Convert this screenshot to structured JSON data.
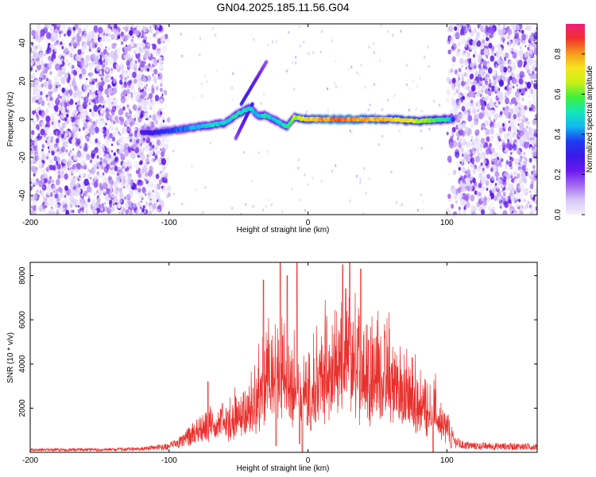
{
  "title": "GN04.2025.185.11.56.G04",
  "colors": {
    "snr_line": "#e8302c",
    "frame": "#000000",
    "noise": "#7a2cf0",
    "colormap": [
      "#f2f0fb",
      "#d6c6f5",
      "#a36af0",
      "#6a18ef",
      "#3a1ae8",
      "#1e3cf0",
      "#11b8f0",
      "#12e8b8",
      "#3ef03a",
      "#c8f018",
      "#f5e51c",
      "#f59a1e",
      "#f0302c",
      "#ee1f7c"
    ]
  },
  "chart_data": [
    {
      "type": "heatmap",
      "xlabel": "Height of straight line (km)",
      "ylabel": "Frequency (Hz)",
      "xlim": [
        -200,
        165
      ],
      "ylim": [
        -50,
        50
      ],
      "xticks": [
        -200,
        -100,
        0,
        100
      ],
      "yticks": [
        -40,
        -20,
        0,
        20,
        40
      ],
      "colorbar": {
        "label": "Normalized spectral amplitude",
        "range": [
          0,
          0.95
        ],
        "ticks": [
          0.0,
          0.2,
          0.4,
          0.6,
          0.8
        ]
      },
      "noise_regions_x": [
        [
          -200,
          -100
        ],
        [
          100,
          165
        ]
      ],
      "signal_trace": {
        "x": [
          -120,
          -110,
          -100,
          -90,
          -80,
          -70,
          -60,
          -50,
          -42,
          -36,
          -30,
          -25,
          -20,
          -15,
          -10,
          0,
          20,
          40,
          60,
          80,
          100,
          105
        ],
        "freq": [
          -7,
          -7,
          -6,
          -5,
          -4,
          -3,
          -2,
          3,
          6,
          2,
          2,
          0,
          -2,
          -4,
          1,
          0,
          0,
          0,
          0,
          -1,
          0,
          0
        ],
        "amplitude": [
          0.3,
          0.35,
          0.4,
          0.45,
          0.5,
          0.55,
          0.55,
          0.6,
          0.55,
          0.5,
          0.6,
          0.5,
          0.55,
          0.6,
          0.7,
          0.85,
          0.95,
          0.9,
          0.85,
          0.75,
          0.6,
          0.4
        ]
      },
      "branches": [
        {
          "x": [
            -30,
            -48
          ],
          "freq": [
            30,
            8
          ]
        },
        {
          "x": [
            -52,
            -40
          ],
          "freq": [
            -10,
            8
          ]
        }
      ]
    },
    {
      "type": "line",
      "xlabel": "Height of straight line (km)",
      "ylabel": "SNR (10 * v/v)",
      "xlim": [
        -200,
        165
      ],
      "ylim": [
        0,
        8600
      ],
      "xticks": [
        -200,
        -100,
        0,
        100
      ],
      "yticks": [
        2000,
        4000,
        6000,
        8000
      ],
      "series": [
        {
          "color": "#e8302c",
          "envelope_x": [
            -200,
            -150,
            -120,
            -100,
            -90,
            -80,
            -70,
            -60,
            -50,
            -40,
            -30,
            -20,
            -10,
            0,
            10,
            20,
            30,
            40,
            50,
            60,
            70,
            80,
            90,
            95,
            100,
            105,
            110,
            120,
            140,
            165
          ],
          "envelope_y": [
            150,
            150,
            200,
            350,
            700,
            1300,
            1900,
            2200,
            2700,
            3200,
            5200,
            5500,
            5000,
            4600,
            5500,
            6200,
            6400,
            6200,
            5800,
            5200,
            4200,
            3600,
            3200,
            2400,
            1600,
            700,
            450,
            380,
            360,
            340
          ],
          "dips": [
            [
              -4,
              0
            ],
            [
              -23,
              300
            ],
            [
              -6,
              400
            ],
            [
              2,
              1000
            ],
            [
              90,
              0
            ],
            [
              103,
              200
            ]
          ],
          "spikes": [
            [
              -32,
              7800
            ],
            [
              -20,
              8600
            ],
            [
              -8,
              8600
            ],
            [
              -15,
              8000
            ],
            [
              25,
              8500
            ],
            [
              30,
              8600
            ],
            [
              38,
              8300
            ],
            [
              -72,
              3200
            ]
          ]
        }
      ]
    }
  ]
}
